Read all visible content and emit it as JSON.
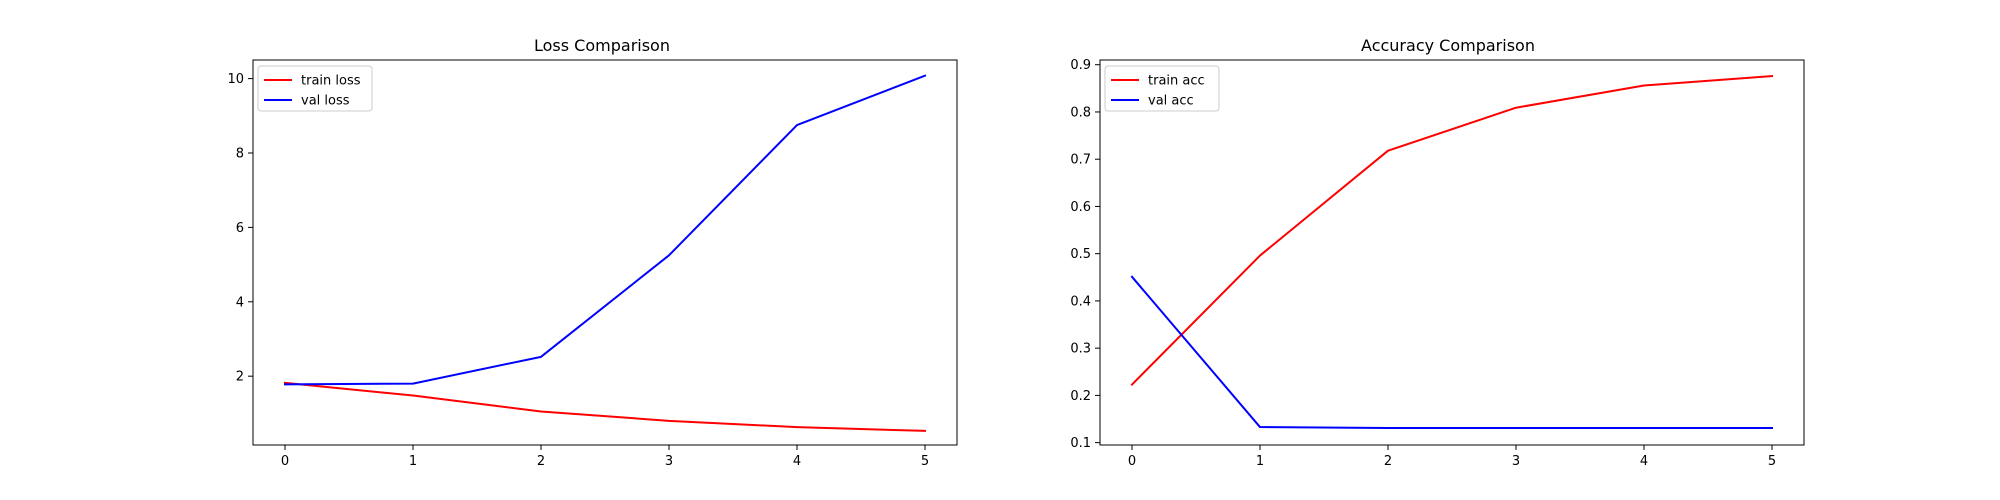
{
  "chart_data": [
    {
      "type": "line",
      "title": "Loss Comparison",
      "xlabel": "",
      "ylabel": "",
      "x": [
        0,
        1,
        2,
        3,
        4,
        5
      ],
      "xticks": [
        0,
        1,
        2,
        3,
        4,
        5
      ],
      "xlim": [
        -0.25,
        5.25
      ],
      "yticks": [
        2,
        4,
        6,
        8,
        10
      ],
      "ylim": [
        0.15,
        10.5
      ],
      "grid": false,
      "legend_position": "upper-left",
      "series": [
        {
          "name": "train loss",
          "color": "#ff0000",
          "values": [
            1.82,
            1.48,
            1.05,
            0.8,
            0.63,
            0.53
          ]
        },
        {
          "name": "val loss",
          "color": "#0000ff",
          "values": [
            1.78,
            1.8,
            2.52,
            5.25,
            8.75,
            10.08
          ]
        }
      ]
    },
    {
      "type": "line",
      "title": "Accuracy Comparison",
      "xlabel": "",
      "ylabel": "",
      "x": [
        0,
        1,
        2,
        3,
        4,
        5
      ],
      "xticks": [
        0,
        1,
        2,
        3,
        4,
        5
      ],
      "xlim": [
        -0.25,
        5.25
      ],
      "yticks": [
        0.1,
        0.2,
        0.3,
        0.4,
        0.5,
        0.6,
        0.7,
        0.8,
        0.9
      ],
      "ylim": [
        0.095,
        0.91
      ],
      "grid": false,
      "legend_position": "upper-left",
      "series": [
        {
          "name": "train acc",
          "color": "#ff0000",
          "values": [
            0.223,
            0.496,
            0.718,
            0.809,
            0.856,
            0.876
          ]
        },
        {
          "name": "val acc",
          "color": "#0000ff",
          "values": [
            0.451,
            0.133,
            0.131,
            0.131,
            0.131,
            0.131
          ]
        }
      ]
    }
  ]
}
